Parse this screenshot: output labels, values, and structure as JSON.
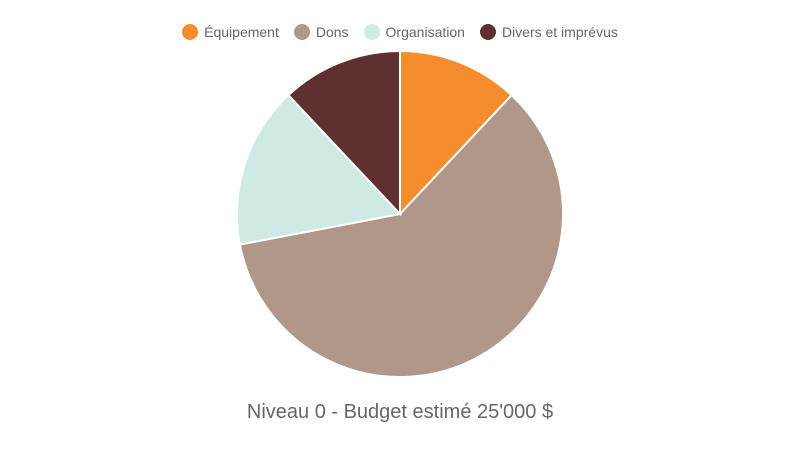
{
  "chart_data": {
    "type": "pie",
    "title": "Niveau 0 - Budget estimé 25'000 $",
    "legend_position": "top",
    "slices": [
      {
        "label": "Équipement",
        "value": 12,
        "color": "#f58c2e"
      },
      {
        "label": "Dons",
        "value": 60,
        "color": "#b0978a"
      },
      {
        "label": "Organisation",
        "value": 16,
        "color": "#cfe9e4"
      },
      {
        "label": "Divers et imprévus",
        "value": 12,
        "color": "#5e3030"
      }
    ]
  }
}
